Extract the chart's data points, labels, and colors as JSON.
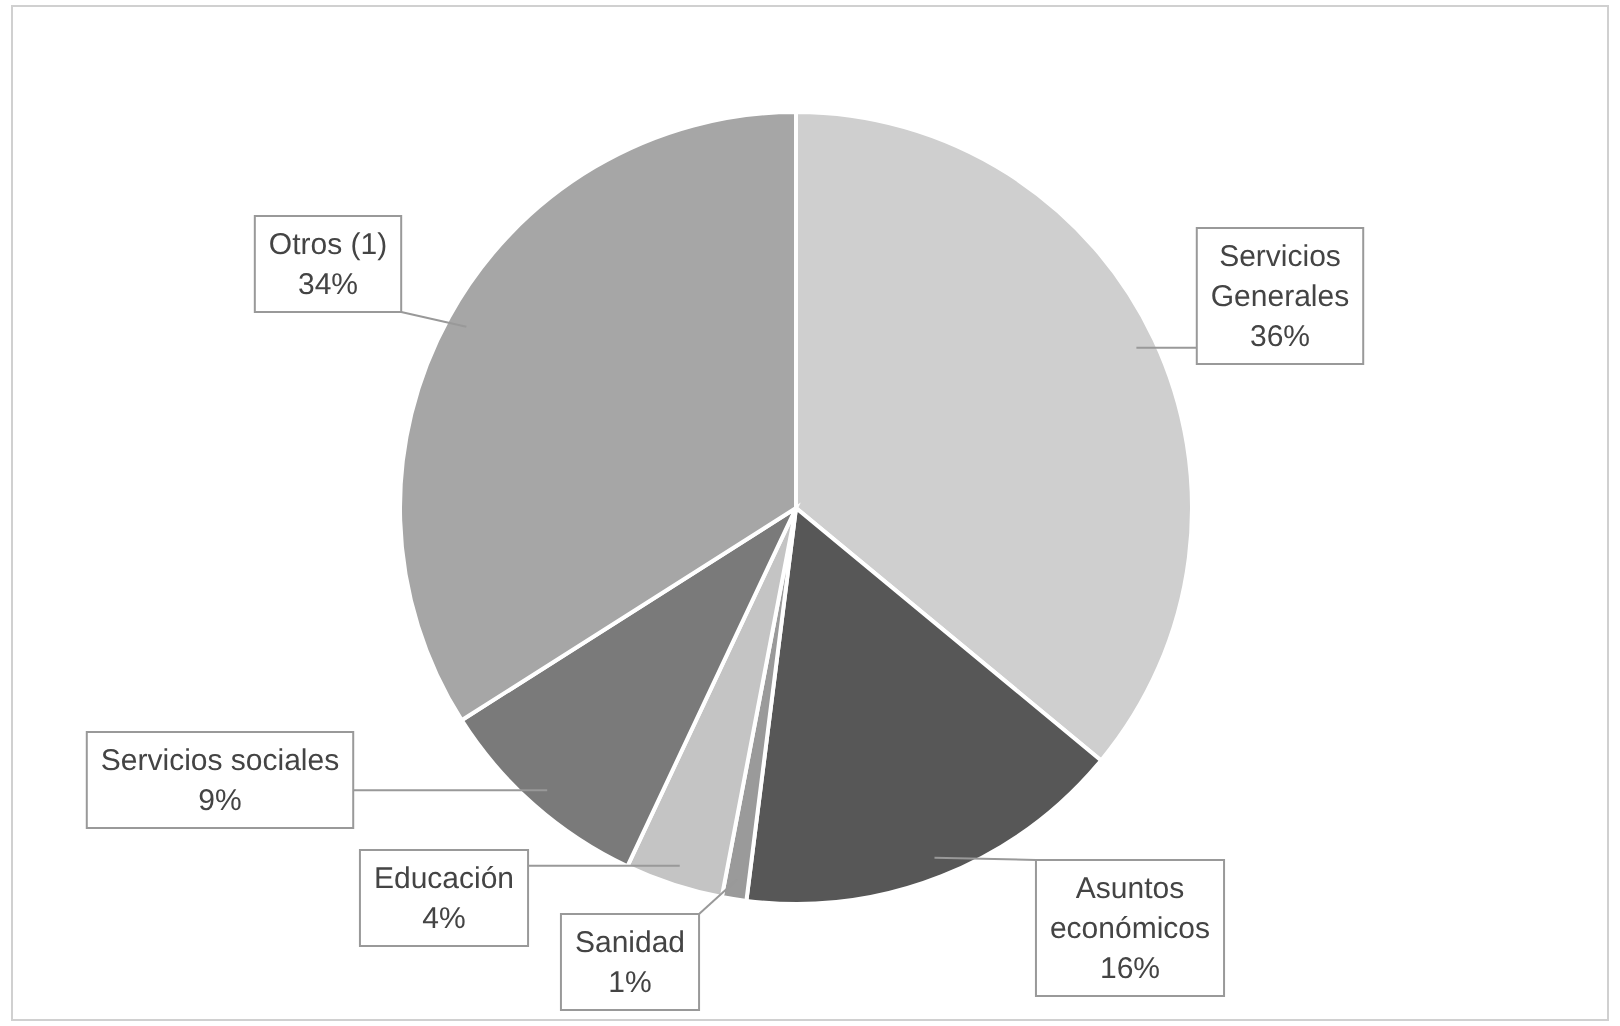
{
  "chart_data": {
    "type": "pie",
    "categories": [
      "Servicios Generales",
      "Asuntos económicos",
      "Sanidad",
      "Educación",
      "Servicios sociales",
      "Otros (1)"
    ],
    "values": [
      36,
      16,
      1,
      4,
      9,
      34
    ],
    "value_labels": [
      "36%",
      "16%",
      "1%",
      "4%",
      "9%",
      "34%"
    ],
    "colors": [
      "#cfcfcf",
      "#575757",
      "#9a9a9a",
      "#c4c4c4",
      "#7a7a7a",
      "#a6a6a6"
    ]
  }
}
